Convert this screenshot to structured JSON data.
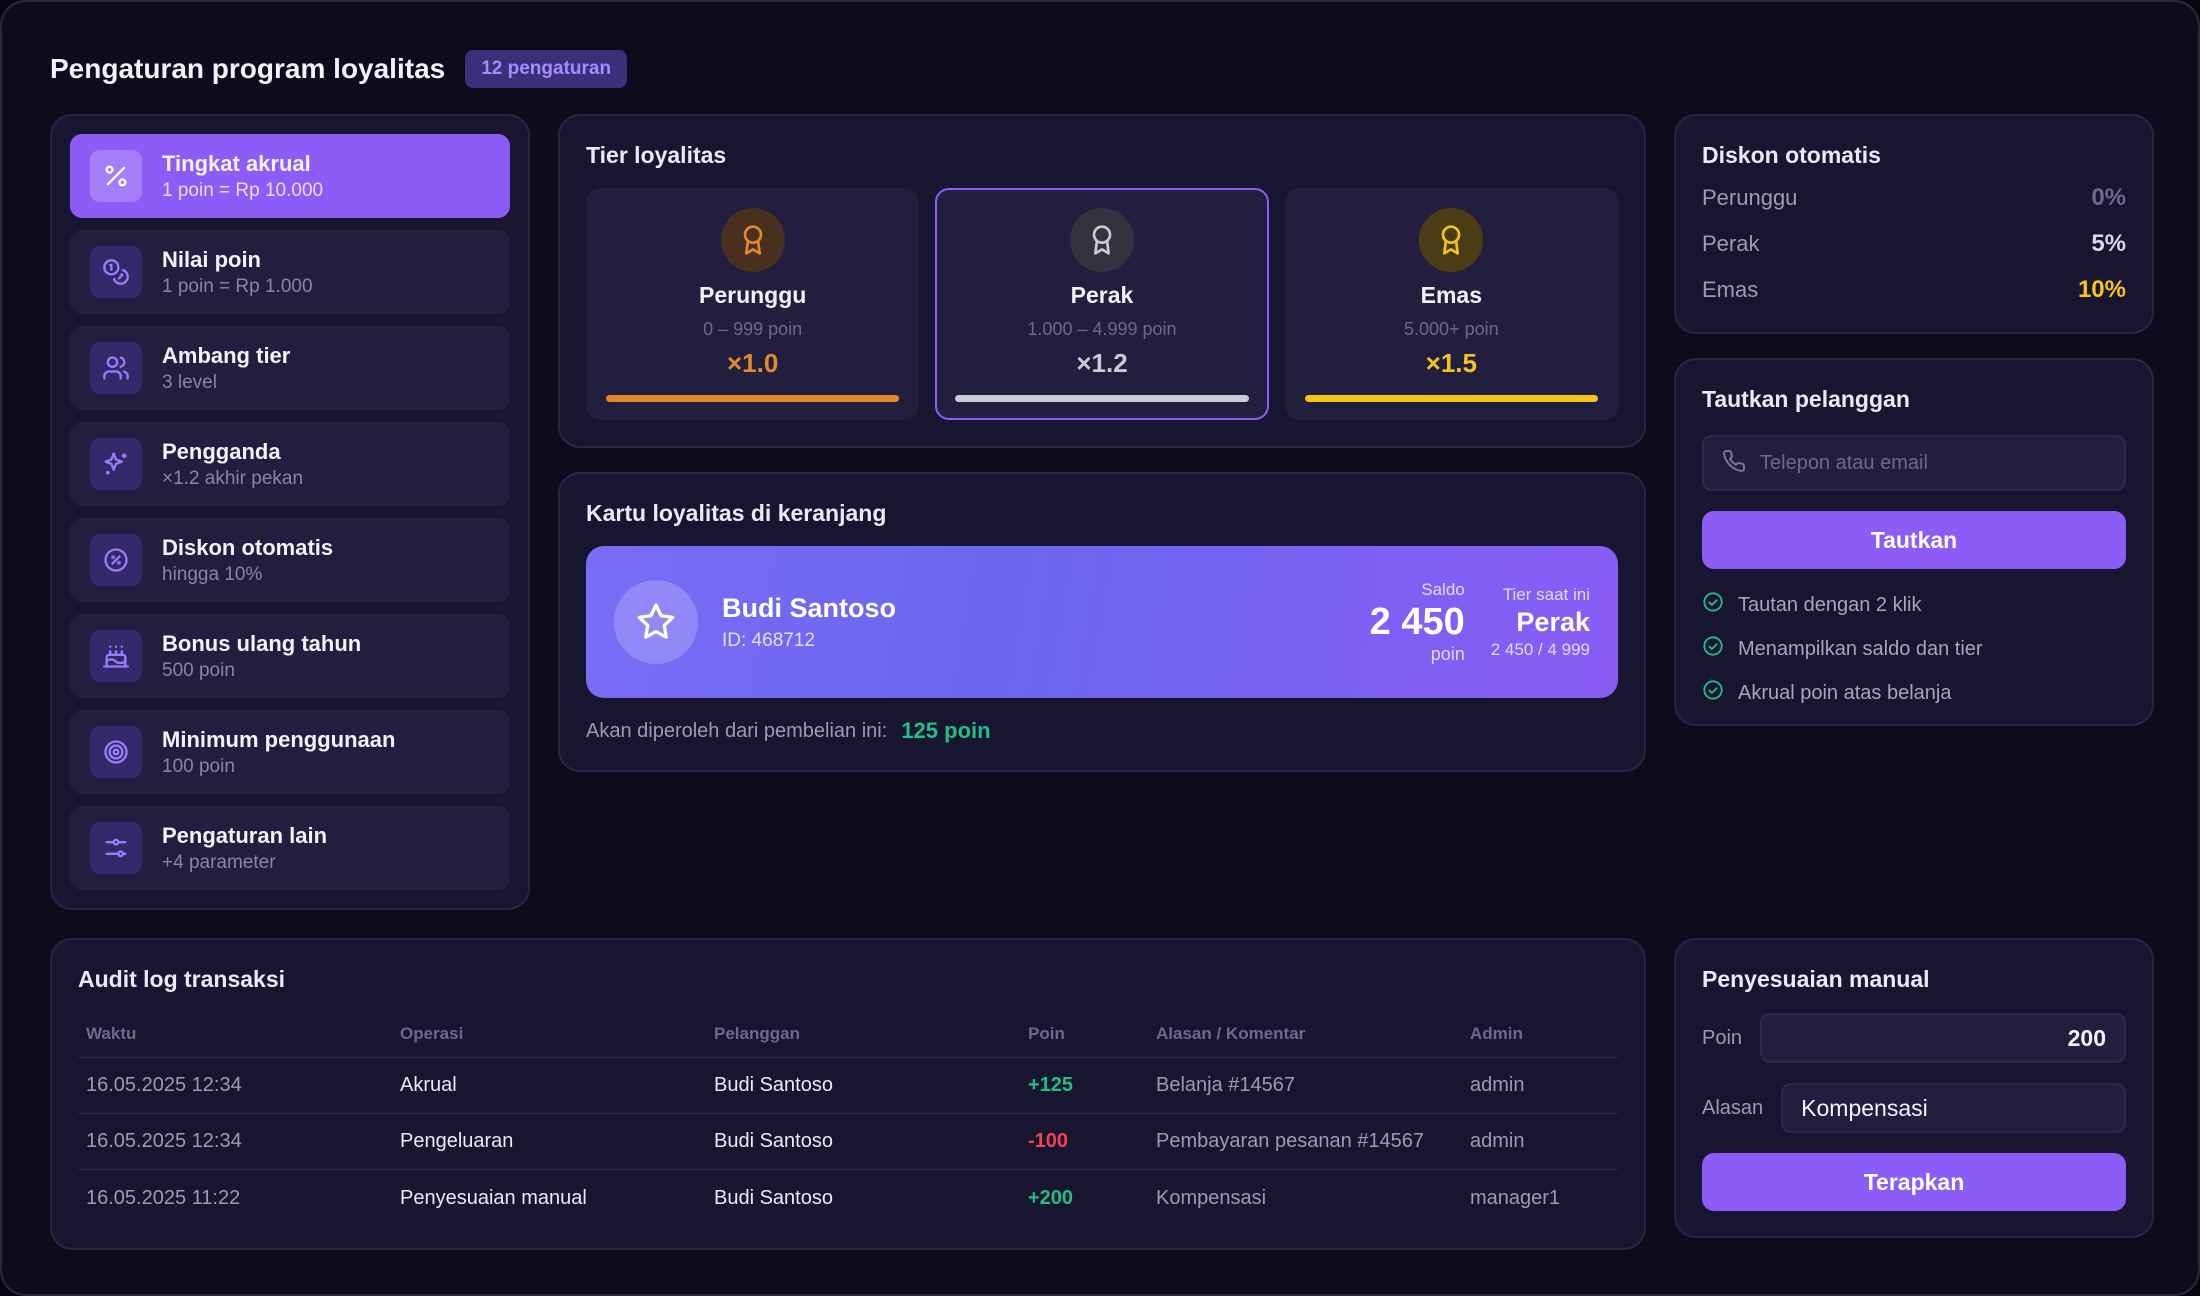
{
  "header": {
    "title": "Pengaturan program loyalitas",
    "badge": "12 pengaturan"
  },
  "sidebar": {
    "items": [
      {
        "label": "Tingkat akrual",
        "sub": "1 poin = Rp 10.000",
        "icon": "percent-icon",
        "active": true
      },
      {
        "label": "Nilai poin",
        "sub": "1 poin = Rp 1.000",
        "icon": "coins-icon"
      },
      {
        "label": "Ambang tier",
        "sub": "3 level",
        "icon": "users-icon"
      },
      {
        "label": "Pengganda",
        "sub": "×1.2 akhir pekan",
        "icon": "sparkles-icon"
      },
      {
        "label": "Diskon otomatis",
        "sub": "hingga 10%",
        "icon": "discount-badge-icon"
      },
      {
        "label": "Bonus ulang tahun",
        "sub": "500 poin",
        "icon": "cake-icon"
      },
      {
        "label": "Minimum penggunaan",
        "sub": "100 poin",
        "icon": "target-icon"
      },
      {
        "label": "Pengaturan lain",
        "sub": "+4 parameter",
        "icon": "sliders-icon"
      }
    ]
  },
  "tiers": {
    "title": "Tier loyalitas",
    "items": [
      {
        "name": "Perunggu",
        "range": "0 – 999 poin",
        "multiplier": "×1.0",
        "color": "#e08a2c",
        "medal_bg": "#4a2e1e",
        "selected": false
      },
      {
        "name": "Perak",
        "range": "1.000 – 4.999 poin",
        "multiplier": "×1.2",
        "color": "#c9cbd6",
        "medal_bg": "#34323f",
        "selected": true
      },
      {
        "name": "Emas",
        "range": "5.000+ poin",
        "multiplier": "×1.5",
        "color": "#f5c518",
        "medal_bg": "#4a3c14",
        "selected": false
      }
    ]
  },
  "cart": {
    "title": "Kartu loyalitas di keranjang",
    "customer_name": "Budi Santoso",
    "customer_id": "ID: 468712",
    "balance_label": "Saldo",
    "balance_value": "2 450",
    "balance_unit": "poin",
    "tier_label": "Tier saat ini",
    "tier_value": "Perak",
    "tier_progress": "2 450 / 4 999",
    "earn_label": "Akan diperoleh dari pembelian ini:",
    "earn_points": "125 poin"
  },
  "discount": {
    "title": "Diskon otomatis",
    "rows": [
      {
        "name": "Perunggu",
        "value": "0%",
        "color": "#6e6890"
      },
      {
        "name": "Perak",
        "value": "5%",
        "color": "#d9d6e8"
      },
      {
        "name": "Emas",
        "value": "10%",
        "color": "#f5c518"
      }
    ]
  },
  "link": {
    "title": "Tautkan pelanggan",
    "placeholder": "Telepon atau email",
    "button": "Tautkan",
    "checks": [
      "Tautan dengan 2 klik",
      "Menampilkan saldo dan tier",
      "Akrual poin atas belanja"
    ]
  },
  "audit": {
    "title": "Audit log transaksi",
    "columns": [
      "Waktu",
      "Operasi",
      "Pelanggan",
      "Poin",
      "Alasan / Komentar",
      "Admin"
    ],
    "rows": [
      {
        "time": "16.05.2025 12:34",
        "op": "Akrual",
        "customer": "Budi Santoso",
        "points": "+125",
        "reason": "Belanja #14567",
        "admin": "admin"
      },
      {
        "time": "16.05.2025 12:34",
        "op": "Pengeluaran",
        "customer": "Budi Santoso",
        "points": "-100",
        "reason": "Pembayaran pesanan #14567",
        "admin": "admin"
      },
      {
        "time": "16.05.2025 11:22",
        "op": "Penyesuaian manual",
        "customer": "Budi Santoso",
        "points": "+200",
        "reason": "Kompensasi",
        "admin": "manager1"
      }
    ]
  },
  "manual": {
    "title": "Penyesuaian manual",
    "points_label": "Poin",
    "points_value": "200",
    "reason_label": "Alasan",
    "reason_value": "Kompensasi",
    "button": "Terapkan"
  },
  "colors": {
    "accent": "#8b5cf6",
    "positive": "#1fbf87",
    "negative": "#f0424f"
  }
}
